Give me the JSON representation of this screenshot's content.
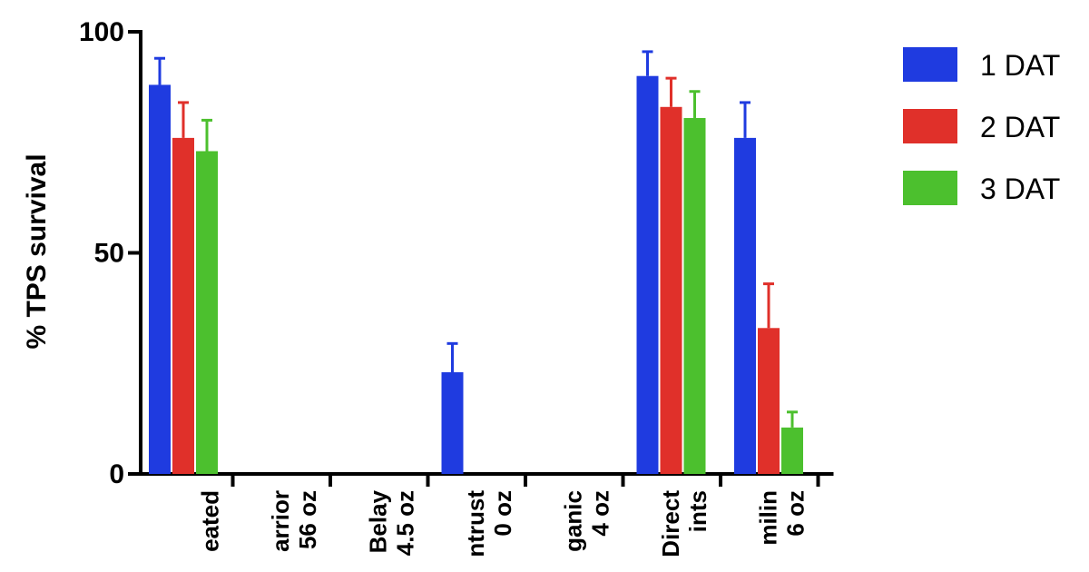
{
  "chart_data": {
    "type": "bar",
    "ylabel": "% TPS survival",
    "ylim": [
      0,
      100
    ],
    "yticks": [
      0,
      50,
      100
    ],
    "categories": [
      [
        "eated"
      ],
      [
        "arrior",
        "56 oz"
      ],
      [
        "Belay",
        "4.5 oz"
      ],
      [
        "ntrust",
        "0 oz"
      ],
      [
        "ganic",
        "4 oz"
      ],
      [
        "Direct",
        "ints"
      ],
      [
        "milin",
        "6 oz"
      ]
    ],
    "series": [
      {
        "name": "1 DAT",
        "color": "#1f3be0",
        "values": [
          88,
          0,
          0,
          23,
          0,
          90,
          76
        ],
        "errors": [
          6,
          0,
          0,
          6.5,
          0,
          5.5,
          8
        ]
      },
      {
        "name": "2 DAT",
        "color": "#e0302a",
        "values": [
          76,
          0,
          0,
          0,
          0,
          83,
          33
        ],
        "errors": [
          8,
          0,
          0,
          0,
          0,
          6.5,
          10
        ]
      },
      {
        "name": "3 DAT",
        "color": "#4cc02e",
        "values": [
          73,
          0,
          0,
          0,
          0,
          80.5,
          10.5
        ],
        "errors": [
          7,
          0,
          0,
          0,
          0,
          6,
          3.5
        ]
      }
    ],
    "legend_position": "top-right",
    "grid": false
  }
}
